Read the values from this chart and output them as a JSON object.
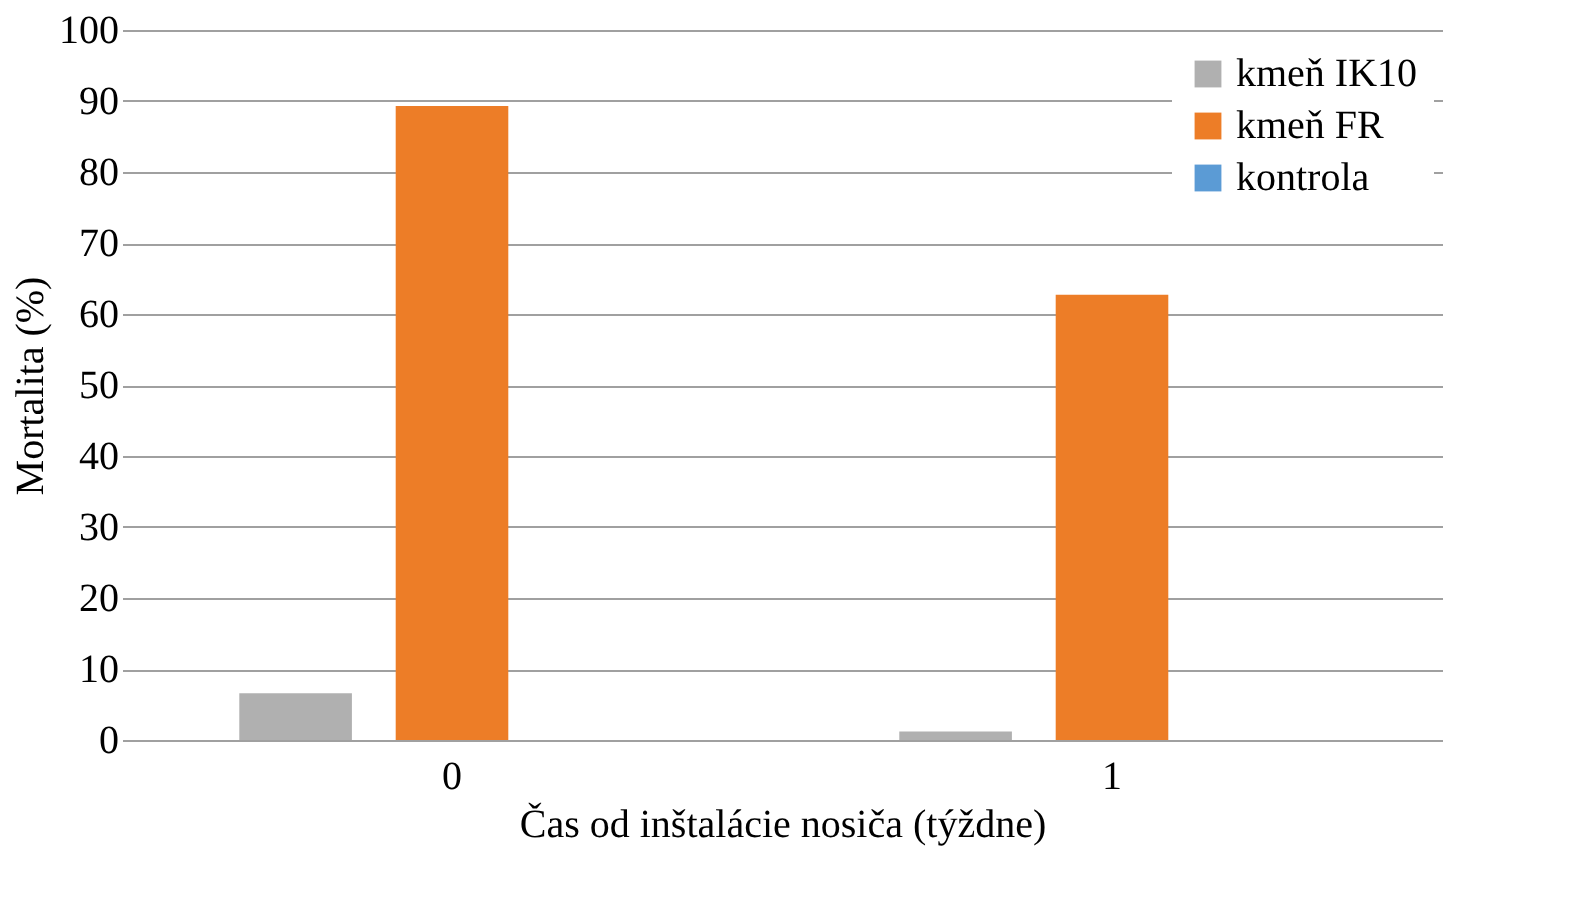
{
  "chart_data": {
    "type": "bar",
    "xlabel": "Čas od inštalácie nosiča (týždne)",
    "ylabel": "Mortalita (%)",
    "categories": [
      "0",
      "1"
    ],
    "series": [
      {
        "name": "kmeň IK10",
        "color": "#b0b0b0",
        "values": [
          6.6,
          1.2
        ]
      },
      {
        "name": "kmeň FR",
        "color": "#ed7d27",
        "values": [
          89.3,
          62.7
        ]
      },
      {
        "name": "kontrola",
        "color": "#5b9bd5",
        "values": [
          0,
          0
        ]
      }
    ],
    "ylim": [
      0,
      100
    ],
    "yticks": [
      0,
      10,
      20,
      30,
      40,
      50,
      60,
      70,
      80,
      90,
      100
    ],
    "grid": "y",
    "legend": "top right"
  }
}
